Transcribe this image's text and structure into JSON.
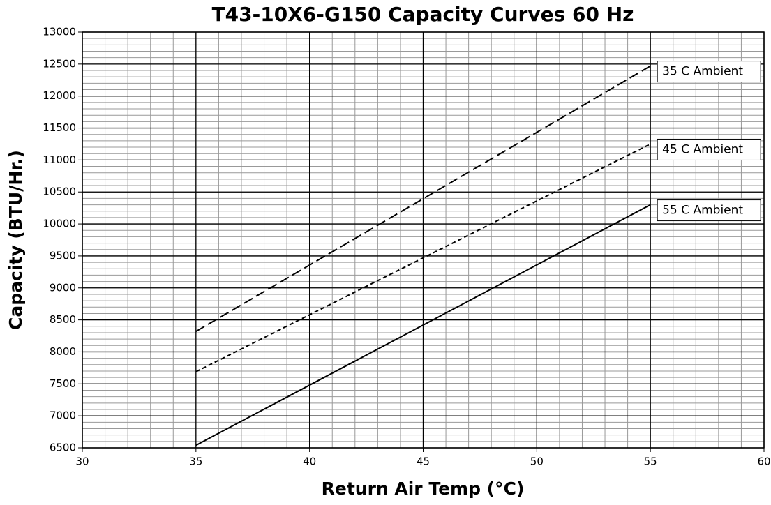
{
  "chart_data": {
    "type": "line",
    "title": "T43-10X6-G150 Capacity Curves 60 Hz",
    "x_label": "Return Air Temp (°C)",
    "y_label": "Capacity (BTU/Hr.)",
    "xlim": [
      30,
      60
    ],
    "xticks": [
      30,
      35,
      40,
      45,
      50,
      55,
      60
    ],
    "ylim": [
      6500,
      13000
    ],
    "yticks": [
      6500,
      7000,
      7500,
      8000,
      8500,
      9000,
      9500,
      10000,
      10500,
      11000,
      11500,
      12000,
      12500,
      13000
    ],
    "grid": true,
    "minor_grid": {
      "x": 1,
      "y": 100
    },
    "series": [
      {
        "name": "35 C Ambient",
        "color": "#000000",
        "dash": "long",
        "x": [
          35,
          55
        ],
        "values": [
          8320,
          12470
        ]
      },
      {
        "name": "45 C Ambient",
        "color": "#000000",
        "dash": "short",
        "x": [
          35,
          55
        ],
        "values": [
          7690,
          11250
        ]
      },
      {
        "name": "55 C Ambient",
        "color": "#000000",
        "dash": "solid",
        "x": [
          35,
          55
        ],
        "values": [
          6540,
          10300
        ]
      }
    ]
  }
}
